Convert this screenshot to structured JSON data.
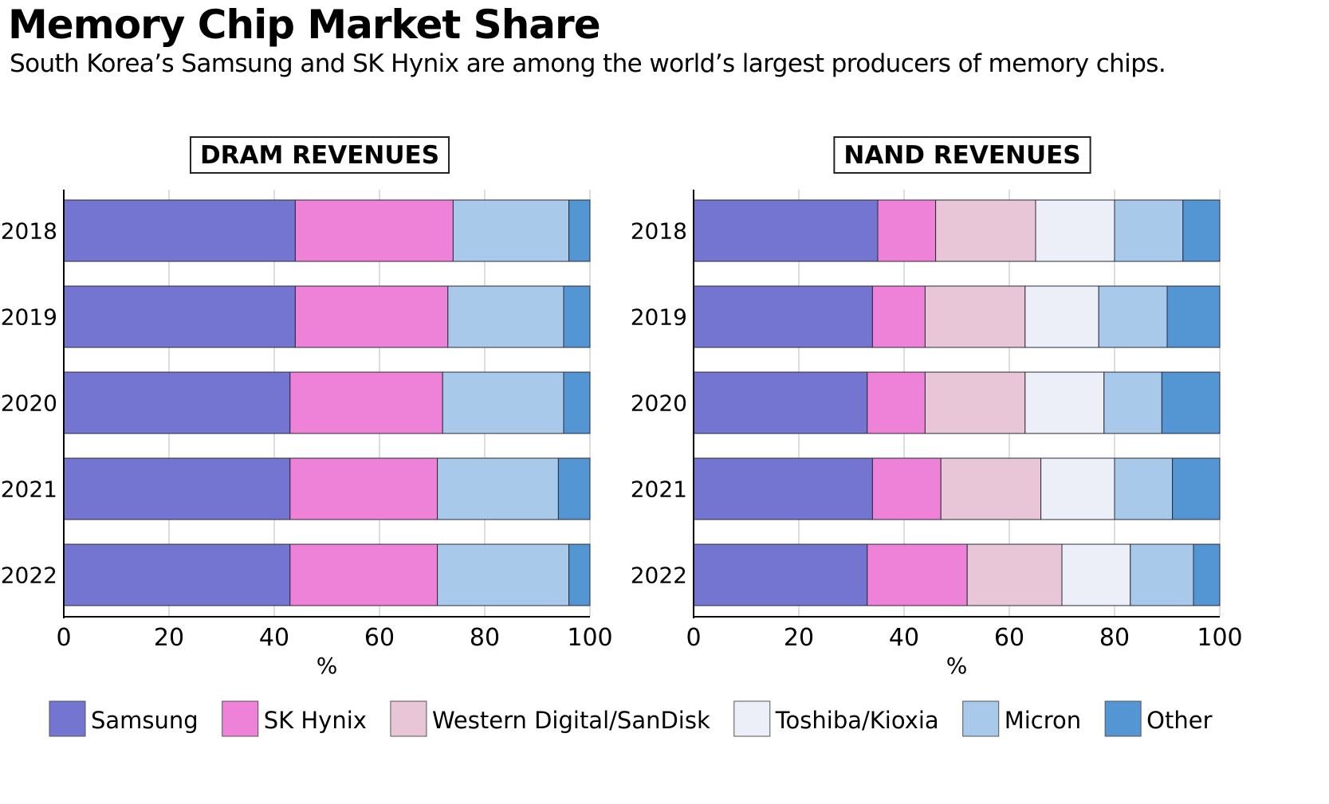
{
  "title": "Memory Chip Market Share",
  "subtitle": "South Korea’s Samsung and SK Hynix are among the world’s largest producers of memory chips.",
  "chart_data": [
    {
      "type": "bar",
      "orientation": "horizontal",
      "stacked": true,
      "title": "DRAM REVENUES",
      "xlabel": "%",
      "ylabel": "",
      "xlim": [
        0,
        100
      ],
      "xticks": [
        "0",
        "20",
        "40",
        "60",
        "80",
        "100"
      ],
      "grid": true,
      "categories": [
        "2018",
        "2019",
        "2020",
        "2021",
        "2022"
      ],
      "series": [
        {
          "name": "Samsung",
          "color": "#7375D1",
          "values": [
            44,
            44,
            43,
            43,
            43
          ]
        },
        {
          "name": "SK Hynix",
          "color": "#EE82D8",
          "values": [
            30,
            29,
            29,
            28,
            28
          ]
        },
        {
          "name": "Micron",
          "color": "#A8C9EA",
          "values": [
            22,
            22,
            23,
            23,
            25
          ]
        },
        {
          "name": "Other",
          "color": "#5496D4",
          "values": [
            4,
            5,
            5,
            6,
            4
          ]
        }
      ]
    },
    {
      "type": "bar",
      "orientation": "horizontal",
      "stacked": true,
      "title": "NAND REVENUES",
      "xlabel": "%",
      "ylabel": "",
      "xlim": [
        0,
        100
      ],
      "xticks": [
        "0",
        "20",
        "40",
        "60",
        "80",
        "100"
      ],
      "grid": true,
      "categories": [
        "2018",
        "2019",
        "2020",
        "2021",
        "2022"
      ],
      "series": [
        {
          "name": "Samsung",
          "color": "#7375D1",
          "values": [
            35,
            34,
            33,
            34,
            33
          ]
        },
        {
          "name": "SK Hynix",
          "color": "#EE82D8",
          "values": [
            11,
            10,
            11,
            13,
            19
          ]
        },
        {
          "name": "Western Digital/SanDisk",
          "color": "#E8C5D7",
          "values": [
            19,
            19,
            19,
            19,
            18
          ]
        },
        {
          "name": "Toshiba/Kioxia",
          "color": "#ECEFF7",
          "values": [
            15,
            14,
            15,
            14,
            13
          ]
        },
        {
          "name": "Micron",
          "color": "#A8C9EA",
          "values": [
            13,
            13,
            11,
            11,
            12
          ]
        },
        {
          "name": "Other",
          "color": "#5496D4",
          "values": [
            7,
            10,
            11,
            9,
            5
          ]
        }
      ]
    }
  ],
  "legend": {
    "placement": "bottom",
    "items": [
      {
        "name": "Samsung",
        "color": "#7375D1"
      },
      {
        "name": "SK Hynix",
        "color": "#EE82D8"
      },
      {
        "name": "Western Digital/SanDisk",
        "color": "#E8C5D7"
      },
      {
        "name": "Toshiba/Kioxia",
        "color": "#ECEFF7"
      },
      {
        "name": "Micron",
        "color": "#A8C9EA"
      },
      {
        "name": "Other",
        "color": "#5496D4"
      }
    ]
  }
}
